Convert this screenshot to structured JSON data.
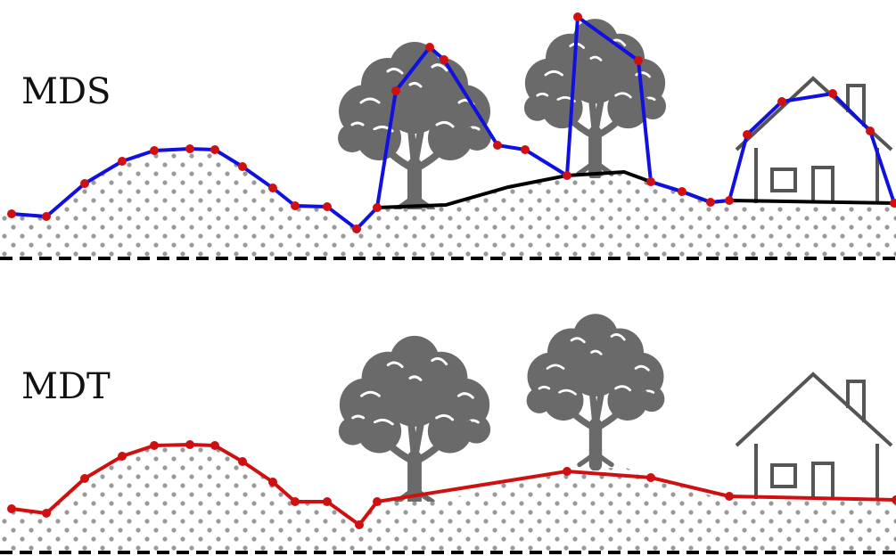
{
  "panels": [
    {
      "label": "MDS"
    },
    {
      "label": "MDT"
    }
  ]
}
